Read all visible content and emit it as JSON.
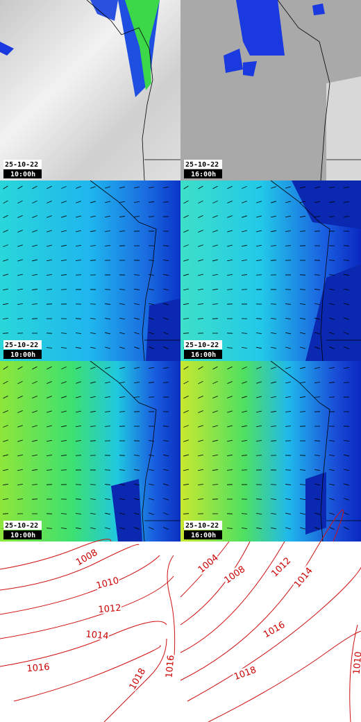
{
  "panels": [
    {
      "date": "25-10-22",
      "time": "10:00h"
    },
    {
      "date": "25-10-22",
      "time": "16:00h"
    },
    {
      "date": "25-10-22",
      "time": "10:00h"
    },
    {
      "date": "25-10-22",
      "time": "16:00h"
    },
    {
      "date": "25-10-22",
      "time": "10:00h"
    },
    {
      "date": "25-10-22",
      "time": "16:00h"
    }
  ],
  "isobars": {
    "left": [
      1008,
      1010,
      1012,
      1014,
      1016,
      1018,
      1016
    ],
    "right": [
      1004,
      1008,
      1012,
      1014,
      1016,
      1018,
      1010
    ]
  }
}
